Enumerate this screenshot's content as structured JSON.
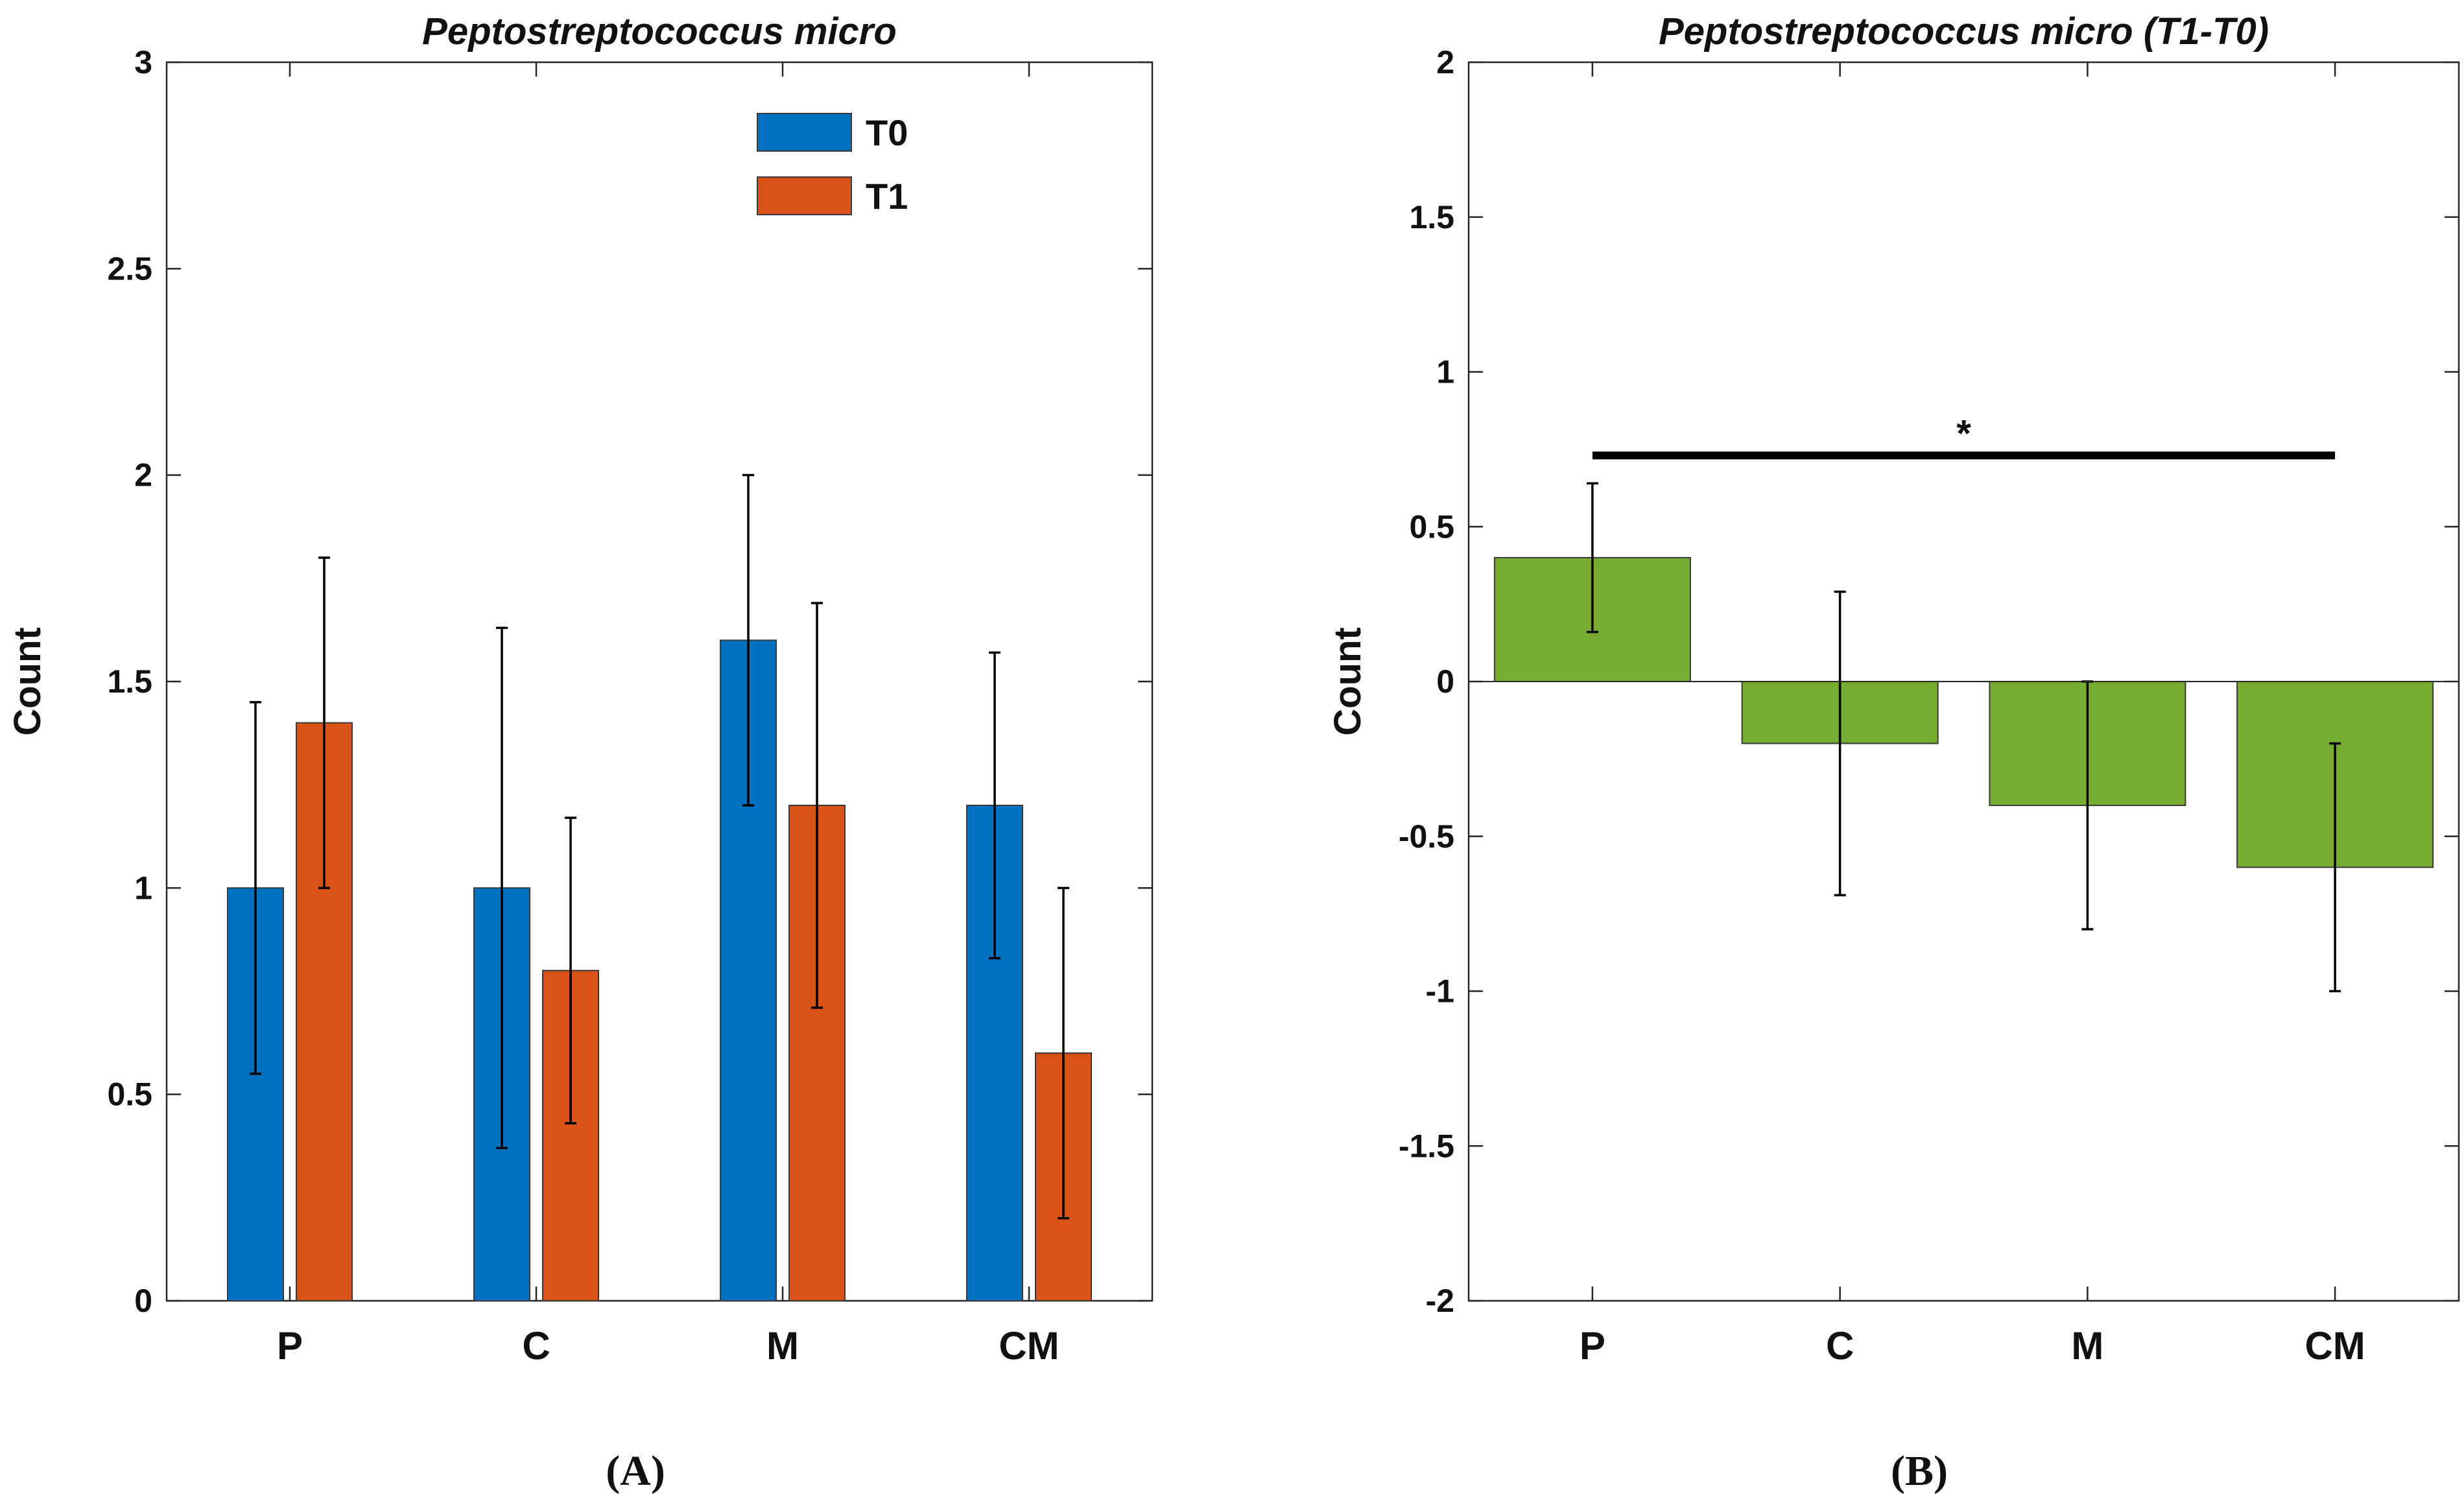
{
  "chart_data": [
    {
      "type": "bar",
      "panel_label": "(A)",
      "title": "Peptostreptococcus micro",
      "ylabel": "Count",
      "xlabel": "",
      "ylim": [
        0,
        3
      ],
      "yticks": [
        "0",
        "0.5",
        "1",
        "1.5",
        "2",
        "2.5",
        "3"
      ],
      "categories": [
        "P",
        "C",
        "M",
        "CM"
      ],
      "legend": "top-right",
      "series": [
        {
          "name": "T0",
          "color": "#0070C0",
          "values": [
            1.0,
            1.0,
            1.6,
            1.2
          ],
          "err_low": [
            0.55,
            0.37,
            1.2,
            0.83
          ],
          "err_high": [
            1.45,
            1.63,
            2.0,
            1.57
          ]
        },
        {
          "name": "T1",
          "color": "#D95319",
          "values": [
            1.4,
            0.8,
            1.2,
            0.6
          ],
          "err_low": [
            1.0,
            0.43,
            0.71,
            0.2
          ],
          "err_high": [
            1.8,
            1.17,
            1.69,
            1.0
          ]
        }
      ]
    },
    {
      "type": "bar",
      "panel_label": "(B)",
      "title": "Peptostreptococcus micro (T1-T0)",
      "ylabel": "Count",
      "xlabel": "",
      "ylim": [
        -2,
        2
      ],
      "yticks": [
        "-2",
        "-1.5",
        "-1",
        "-0.5",
        "0",
        "0.5",
        "1",
        "1.5",
        "2"
      ],
      "categories": [
        "P",
        "C",
        "M",
        "CM"
      ],
      "series": [
        {
          "name": "T1-T0",
          "color": "#77AC30",
          "values": [
            0.4,
            -0.2,
            -0.4,
            -0.6
          ],
          "err_low": [
            0.16,
            -0.69,
            -0.8,
            -1.0
          ],
          "err_high": [
            0.64,
            0.29,
            0.0,
            -0.2
          ]
        }
      ],
      "significance": {
        "from": "P",
        "to": "CM",
        "label": "*",
        "y": 0.73
      }
    }
  ]
}
